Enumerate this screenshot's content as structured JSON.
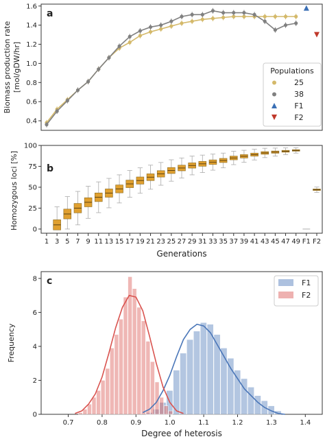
{
  "chart_data": [
    {
      "panel": "a",
      "type": "line",
      "ylabel_line1": "Biomass production rate",
      "ylabel_line2": "[mol/gDW/hr]",
      "ylim": [
        0.3,
        1.62
      ],
      "yticks": [
        "0.4",
        "0.6",
        "0.8",
        "1.0",
        "1.2",
        "1.4",
        "1.6"
      ],
      "ytick_values": [
        0.4,
        0.6,
        0.8,
        1.0,
        1.2,
        1.4,
        1.6
      ],
      "x": [
        1,
        3,
        5,
        7,
        9,
        11,
        13,
        15,
        17,
        19,
        21,
        23,
        25,
        27,
        29,
        31,
        33,
        35,
        37,
        39,
        41,
        43,
        45,
        47,
        49
      ],
      "legend_title": "Populations",
      "legend_position": "right",
      "series": [
        {
          "name": "25",
          "color": "#d4b96a",
          "marker": "circle",
          "values": [
            0.38,
            0.52,
            0.62,
            0.72,
            0.81,
            0.94,
            1.06,
            1.16,
            1.22,
            1.29,
            1.33,
            1.36,
            1.39,
            1.42,
            1.44,
            1.46,
            1.47,
            1.48,
            1.49,
            1.49,
            1.49,
            1.49,
            1.49,
            1.49,
            1.49
          ]
        },
        {
          "name": "38",
          "color": "#808080",
          "marker": "circle",
          "values": [
            0.36,
            0.5,
            0.61,
            0.72,
            0.81,
            0.94,
            1.06,
            1.18,
            1.28,
            1.34,
            1.38,
            1.4,
            1.44,
            1.49,
            1.51,
            1.51,
            1.55,
            1.53,
            1.53,
            1.53,
            1.51,
            1.44,
            1.35,
            1.4,
            1.42
          ]
        }
      ],
      "points": [
        {
          "name": "F1",
          "x": "F1",
          "value": 1.58,
          "color": "#3a6fb5",
          "marker": "triangle-up"
        },
        {
          "name": "F2",
          "x": "F2",
          "value": 1.3,
          "color": "#c0392b",
          "marker": "triangle-down"
        }
      ]
    },
    {
      "panel": "b",
      "type": "box",
      "ylabel": "Homozygous loci [%]",
      "xlabel": "Generations",
      "ylim": [
        -5,
        100
      ],
      "yticks": [
        "0",
        "25",
        "50",
        "75",
        "100"
      ],
      "ytick_values": [
        0,
        25,
        50,
        75,
        100
      ],
      "categories": [
        "1",
        "3",
        "5",
        "7",
        "9",
        "11",
        "13",
        "15",
        "17",
        "19",
        "21",
        "23",
        "25",
        "27",
        "29",
        "31",
        "33",
        "35",
        "37",
        "39",
        "41",
        "43",
        "45",
        "47",
        "49",
        "F1",
        "F2"
      ],
      "box_color": "#e0a030",
      "medians": [
        0,
        5,
        18,
        25,
        32,
        38,
        43,
        48,
        54,
        58,
        62,
        66,
        70,
        73,
        76,
        78,
        80,
        82,
        85,
        87,
        89,
        91,
        92,
        93,
        94,
        0,
        47
      ]
    },
    {
      "panel": "c",
      "type": "histogram",
      "ylabel": "Frequency",
      "xlabel": "Degree of heterosis",
      "xlim": [
        0.62,
        1.45
      ],
      "ylim": [
        0,
        8.4
      ],
      "xticks": [
        "0.7",
        "0.8",
        "0.9",
        "1.0",
        "1.1",
        "1.2",
        "1.3",
        "1.4"
      ],
      "xtick_values": [
        0.7,
        0.8,
        0.9,
        1.0,
        1.1,
        1.2,
        1.3,
        1.4
      ],
      "yticks": [
        "0",
        "2",
        "4",
        "6",
        "8"
      ],
      "ytick_values": [
        0,
        2,
        4,
        6,
        8
      ],
      "legend_position": "top-right",
      "series": [
        {
          "name": "F1",
          "color": "#4a76b8",
          "bin_start": 0.93,
          "bin_width": 0.02,
          "counts": [
            0.1,
            0.3,
            0.7,
            1.4,
            2.6,
            3.6,
            4.4,
            4.9,
            5.4,
            5.3,
            4.7,
            3.9,
            3.3,
            2.6,
            2.1,
            1.6,
            1.1,
            0.8,
            0.5,
            0.2
          ],
          "kde_x": [
            0.92,
            0.94,
            0.96,
            0.98,
            1.0,
            1.02,
            1.04,
            1.06,
            1.08,
            1.1,
            1.12,
            1.14,
            1.16,
            1.18,
            1.2,
            1.22,
            1.24,
            1.26,
            1.28,
            1.3,
            1.32,
            1.34
          ],
          "kde_y": [
            0.1,
            0.3,
            0.7,
            1.4,
            2.3,
            3.4,
            4.4,
            5.0,
            5.3,
            5.2,
            4.8,
            4.1,
            3.4,
            2.7,
            2.1,
            1.5,
            1.1,
            0.7,
            0.4,
            0.2,
            0.05,
            0.0
          ]
        },
        {
          "name": "F2",
          "color": "#d9534f",
          "bin_start": 0.73,
          "bin_width": 0.0133,
          "counts": [
            0.1,
            0.3,
            0.6,
            1.0,
            1.4,
            2.0,
            2.7,
            3.9,
            4.7,
            5.6,
            6.9,
            8.1,
            7.4,
            6.3,
            5.5,
            4.3,
            3.1,
            1.9,
            1.0,
            0.5,
            0.2
          ],
          "kde_x": [
            0.72,
            0.74,
            0.76,
            0.78,
            0.8,
            0.82,
            0.84,
            0.86,
            0.88,
            0.9,
            0.92,
            0.94,
            0.96,
            0.98,
            1.0,
            1.02,
            1.04
          ],
          "kde_y": [
            0.05,
            0.2,
            0.6,
            1.2,
            2.2,
            3.6,
            5.1,
            6.3,
            7.0,
            6.9,
            6.1,
            4.6,
            3.0,
            1.6,
            0.7,
            0.2,
            0.05
          ]
        }
      ]
    }
  ]
}
